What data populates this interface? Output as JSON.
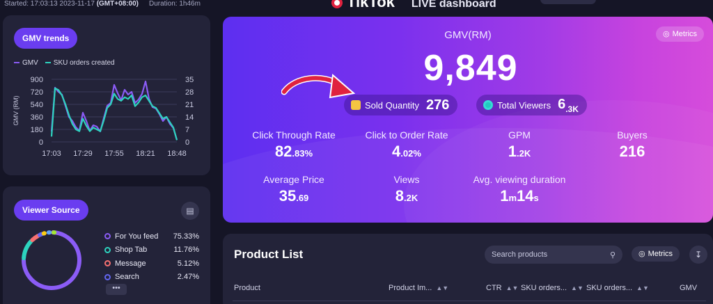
{
  "topbar": {
    "started_label": "Started: 17:03:13 2023-11-17",
    "timezone": "(GMT+08:00)",
    "duration": "Duration: 1h46m"
  },
  "brand": {
    "name": "TikTok",
    "subtitle": "LIVE dashboard"
  },
  "gmv_trends": {
    "title": "GMV trends",
    "legend": [
      {
        "label": "GMV",
        "color": "#8b5cf6"
      },
      {
        "label": "SKU orders created",
        "color": "#2dd4bf"
      }
    ]
  },
  "chart_data": {
    "type": "line",
    "x": [
      "17:03",
      "17:06",
      "17:09",
      "17:12",
      "17:15",
      "17:18",
      "17:21",
      "17:24",
      "17:27",
      "17:29",
      "17:32",
      "17:35",
      "17:38",
      "17:41",
      "17:44",
      "17:47",
      "17:50",
      "17:53",
      "17:55",
      "17:58",
      "18:01",
      "18:04",
      "18:07",
      "18:10",
      "18:13",
      "18:16",
      "18:19",
      "18:21",
      "18:24",
      "18:27",
      "18:30",
      "18:33",
      "18:36",
      "18:39",
      "18:42",
      "18:45",
      "18:48"
    ],
    "series": [
      {
        "name": "GMV",
        "axis": "left",
        "values": [
          150,
          780,
          720,
          680,
          520,
          360,
          300,
          210,
          160,
          420,
          300,
          160,
          240,
          220,
          150,
          340,
          520,
          560,
          820,
          700,
          600,
          750,
          680,
          720,
          560,
          610,
          690,
          870,
          620,
          500,
          480,
          400,
          300,
          360,
          260,
          200,
          30
        ]
      },
      {
        "name": "SKU orders created",
        "axis": "right",
        "values": [
          3,
          30,
          29,
          26,
          21,
          15,
          10,
          7,
          6,
          13,
          9,
          6,
          8,
          7,
          6,
          12,
          19,
          21,
          27,
          24,
          23,
          25,
          24,
          26,
          20,
          22,
          25,
          26,
          23,
          20,
          19,
          16,
          13,
          14,
          11,
          8,
          1
        ]
      }
    ],
    "xlabel": "",
    "ylabel": "GMV (RM)",
    "ylim": [
      0,
      900
    ],
    "y2lim": [
      0,
      35
    ],
    "yticks": [
      0,
      180,
      360,
      540,
      720,
      900
    ],
    "y2ticks": [
      0,
      7,
      14,
      21,
      28,
      35
    ],
    "xticks": [
      "17:03",
      "17:29",
      "17:55",
      "18:21",
      "18:48"
    ],
    "grid": true,
    "legend": "top-left"
  },
  "viewer_source": {
    "title": "Viewer Source",
    "items": [
      {
        "name": "For You feed",
        "pct": "75.33%",
        "value": 75.33,
        "color": "#8b5cf6"
      },
      {
        "name": "Shop Tab",
        "pct": "11.76%",
        "value": 11.76,
        "color": "#2dd4bf"
      },
      {
        "name": "Message",
        "pct": "5.12%",
        "value": 5.12,
        "color": "#f87171"
      },
      {
        "name": "Search",
        "pct": "2.47%",
        "value": 2.47,
        "color": "#6366f1"
      }
    ],
    "extra_segment_colors": [
      "#facc15",
      "#60a5fa",
      "#a3e635"
    ],
    "more_label": "•••"
  },
  "hero": {
    "gmv_label": "GMV(RM)",
    "gmv_value": "9,849",
    "metrics_label": "Metrics",
    "sold_quantity": {
      "label": "Sold Quantity",
      "value": "276"
    },
    "total_viewers": {
      "label": "Total Viewers",
      "value": "6",
      "suffix": ".3K"
    },
    "stats": [
      {
        "label": "Click Through Rate",
        "main": "82",
        "sub": ".83%"
      },
      {
        "label": "Click to Order Rate",
        "main": "4",
        "sub": ".02%"
      },
      {
        "label": "GPM",
        "main": "1",
        "sub": ".2K"
      },
      {
        "label": "Buyers",
        "main": "216",
        "sub": ""
      },
      {
        "label": "Average Price",
        "main": "35",
        "sub": ".69"
      },
      {
        "label": "Views",
        "main": "8",
        "sub": ".2K"
      },
      {
        "label": "Avg. viewing duration",
        "main": "1",
        "sub": "m",
        "main2": "14",
        "sub2": "s"
      }
    ]
  },
  "product_list": {
    "title": "Product List",
    "search_placeholder": "Search products",
    "metrics_label": "Metrics",
    "columns": [
      "Product",
      "Product Im...",
      "CTR",
      "SKU orders...",
      "SKU orders...",
      "GMV"
    ]
  },
  "colors": {
    "accent": "#6a3df0",
    "arrow": "#e0223f"
  }
}
